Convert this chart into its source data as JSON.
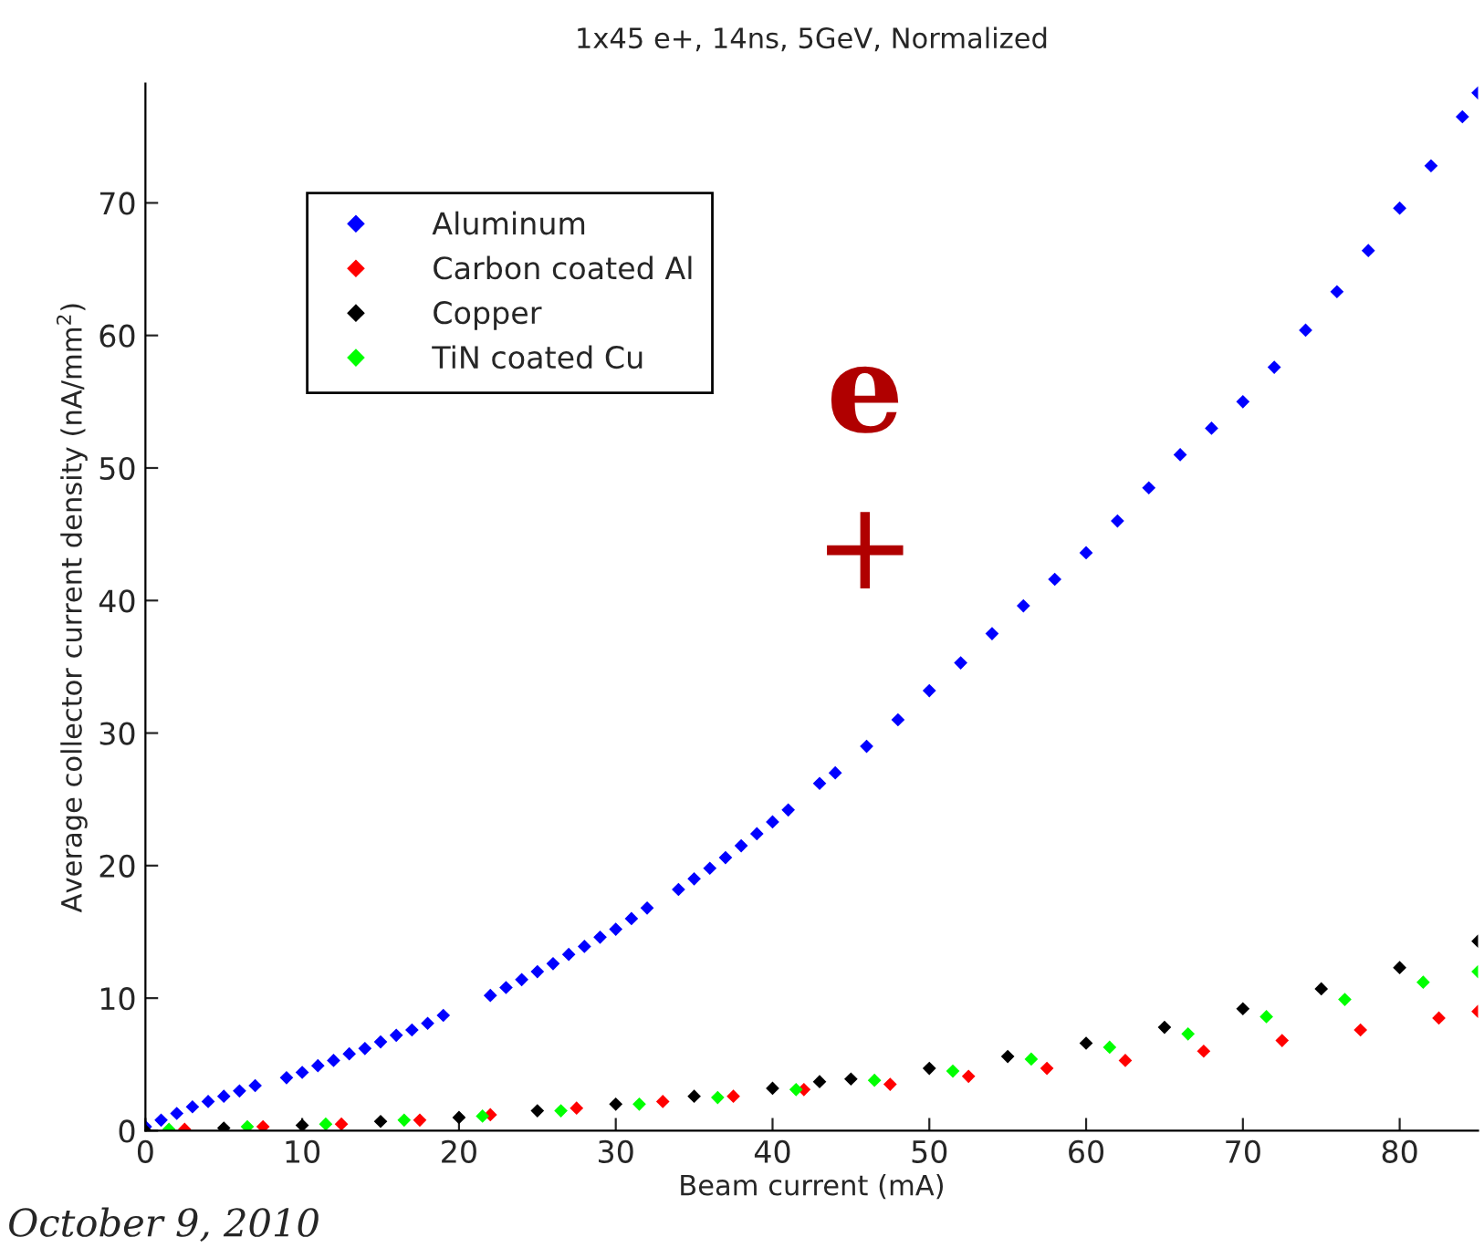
{
  "chart_data": {
    "type": "scatter",
    "title": "1x45 e+, 14ns, 5GeV, Normalized",
    "xlabel": "Beam current (mA)",
    "ylabel": "Average collector current density (nA/mm$^{2}$)",
    "xlim": [
      0,
      85
    ],
    "ylim": [
      0,
      79
    ],
    "xticks": [
      0,
      10,
      20,
      30,
      40,
      50,
      60,
      70,
      80
    ],
    "yticks": [
      0,
      10,
      20,
      30,
      40,
      50,
      60,
      70
    ],
    "marker": "diamond",
    "legend": "top left",
    "grid": false,
    "annotations": [
      "e",
      "+",
      "October 9, 2010"
    ],
    "series": [
      {
        "name": "Aluminum",
        "color": "#0000ff",
        "x": [
          0,
          1,
          2,
          3,
          4,
          5,
          6,
          7,
          9,
          10,
          11,
          12,
          13,
          14,
          15,
          16,
          17,
          18,
          19,
          22,
          23,
          24,
          25,
          26,
          27,
          28,
          29,
          30,
          31,
          32,
          34,
          35,
          36,
          37,
          38,
          39,
          40,
          41,
          43,
          44,
          46,
          48,
          50,
          52,
          54,
          56,
          58,
          60,
          62,
          64,
          66,
          68,
          70,
          72,
          74,
          76,
          78,
          80,
          82,
          84,
          85
        ],
        "values": [
          0.3,
          0.8,
          1.3,
          1.8,
          2.2,
          2.6,
          3.0,
          3.4,
          4.0,
          4.4,
          4.9,
          5.3,
          5.8,
          6.2,
          6.7,
          7.2,
          7.6,
          8.1,
          8.7,
          10.2,
          10.8,
          11.4,
          12.0,
          12.6,
          13.3,
          13.9,
          14.6,
          15.2,
          16.0,
          16.8,
          18.2,
          19.0,
          19.8,
          20.6,
          21.5,
          22.4,
          23.3,
          24.2,
          26.2,
          27.0,
          29.0,
          31.0,
          33.2,
          35.3,
          37.5,
          39.6,
          41.6,
          43.6,
          46.0,
          48.5,
          51.0,
          53.0,
          55.0,
          57.6,
          60.4,
          63.3,
          66.4,
          69.6,
          72.8,
          76.5,
          78.3
        ]
      },
      {
        "name": "Carbon coated Al",
        "color": "#ff0000",
        "x": [
          2.5,
          7.5,
          12.5,
          17.5,
          22,
          27.5,
          33,
          37.5,
          42,
          47.5,
          52.5,
          57.5,
          62.5,
          67.5,
          72.5,
          77.5,
          82.5,
          85
        ],
        "values": [
          0.1,
          0.3,
          0.5,
          0.8,
          1.2,
          1.7,
          2.2,
          2.6,
          3.1,
          3.5,
          4.1,
          4.7,
          5.3,
          6.0,
          6.8,
          7.6,
          8.5,
          9.0
        ]
      },
      {
        "name": "Copper",
        "color": "#000000",
        "x": [
          0,
          5,
          10,
          15,
          20,
          25,
          30,
          35,
          40,
          43,
          45,
          50,
          55,
          60,
          65,
          70,
          75,
          80,
          85
        ],
        "values": [
          0,
          0.2,
          0.4,
          0.7,
          1.0,
          1.5,
          2.0,
          2.6,
          3.2,
          3.7,
          3.9,
          4.7,
          5.6,
          6.6,
          7.8,
          9.2,
          10.7,
          12.3,
          14.3
        ]
      },
      {
        "name": "TiN coated Cu",
        "color": "#00ff00",
        "x": [
          1.5,
          6.5,
          11.5,
          16.5,
          21.5,
          26.5,
          31.5,
          36.5,
          41.5,
          46.5,
          51.5,
          56.5,
          61.5,
          66.5,
          71.5,
          76.5,
          81.5,
          85
        ],
        "values": [
          0.1,
          0.3,
          0.5,
          0.8,
          1.1,
          1.5,
          2.0,
          2.5,
          3.1,
          3.8,
          4.5,
          5.4,
          6.3,
          7.3,
          8.6,
          9.9,
          11.2,
          12.0
        ]
      }
    ]
  }
}
